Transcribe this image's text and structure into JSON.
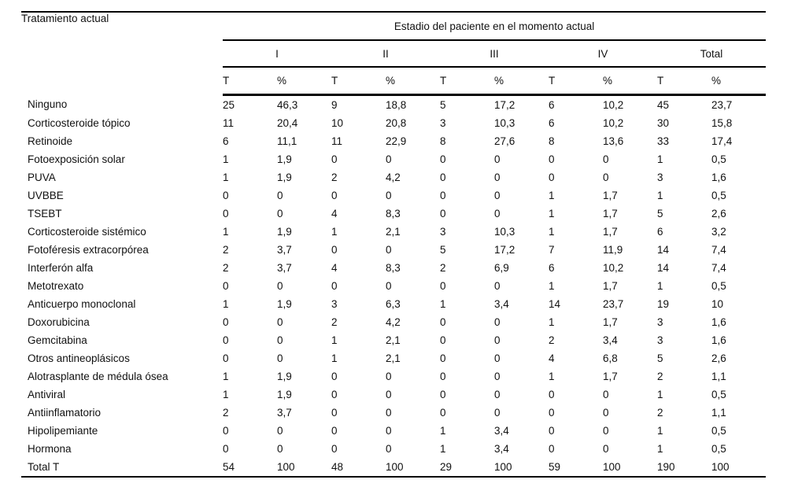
{
  "table": {
    "corner_header": "Tratamiento actual",
    "span_header": "Estadio del paciente en el momento actual",
    "groups": [
      "I",
      "II",
      "III",
      "IV",
      "Total"
    ],
    "subheaders": [
      "T",
      "%"
    ],
    "rows": [
      {
        "label": "Ninguno",
        "values": [
          "25",
          "46,3",
          "9",
          "18,8",
          "5",
          "17,2",
          "6",
          "10,2",
          "45",
          "23,7"
        ]
      },
      {
        "label": "Corticosteroide tópico",
        "values": [
          "11",
          "20,4",
          "10",
          "20,8",
          "3",
          "10,3",
          "6",
          "10,2",
          "30",
          "15,8"
        ]
      },
      {
        "label": "Retinoide",
        "values": [
          "6",
          "11,1",
          "11",
          "22,9",
          "8",
          "27,6",
          "8",
          "13,6",
          "33",
          "17,4"
        ]
      },
      {
        "label": "Fotoexposición solar",
        "values": [
          "1",
          "1,9",
          "0",
          "0",
          "0",
          "0",
          "0",
          "0",
          "1",
          "0,5"
        ]
      },
      {
        "label": "PUVA",
        "values": [
          "1",
          "1,9",
          "2",
          "4,2",
          "0",
          "0",
          "0",
          "0",
          "3",
          "1,6"
        ]
      },
      {
        "label": "UVBBE",
        "values": [
          "0",
          "0",
          "0",
          "0",
          "0",
          "0",
          "1",
          "1,7",
          "1",
          "0,5"
        ]
      },
      {
        "label": "TSEBT",
        "values": [
          "0",
          "0",
          "4",
          "8,3",
          "0",
          "0",
          "1",
          "1,7",
          "5",
          "2,6"
        ]
      },
      {
        "label": "Corticosteroide sistémico",
        "values": [
          "1",
          "1,9",
          "1",
          "2,1",
          "3",
          "10,3",
          "1",
          "1,7",
          "6",
          "3,2"
        ]
      },
      {
        "label": "Fotoféresis extracorpórea",
        "values": [
          "2",
          "3,7",
          "0",
          "0",
          "5",
          "17,2",
          "7",
          "11,9",
          "14",
          "7,4"
        ]
      },
      {
        "label": "Interferón alfa",
        "values": [
          "2",
          "3,7",
          "4",
          "8,3",
          "2",
          "6,9",
          "6",
          "10,2",
          "14",
          "7,4"
        ]
      },
      {
        "label": "Metotrexato",
        "values": [
          "0",
          "0",
          "0",
          "0",
          "0",
          "0",
          "1",
          "1,7",
          "1",
          "0,5"
        ]
      },
      {
        "label": "Anticuerpo monoclonal",
        "values": [
          "1",
          "1,9",
          "3",
          "6,3",
          "1",
          "3,4",
          "14",
          "23,7",
          "19",
          "10"
        ]
      },
      {
        "label": "Doxorubicina",
        "values": [
          "0",
          "0",
          "2",
          "4,2",
          "0",
          "0",
          "1",
          "1,7",
          "3",
          "1,6"
        ]
      },
      {
        "label": "Gemcitabina",
        "values": [
          "0",
          "0",
          "1",
          "2,1",
          "0",
          "0",
          "2",
          "3,4",
          "3",
          "1,6"
        ]
      },
      {
        "label": "Otros antineoplásicos",
        "values": [
          "0",
          "0",
          "1",
          "2,1",
          "0",
          "0",
          "4",
          "6,8",
          "5",
          "2,6"
        ]
      },
      {
        "label": "Alotrasplante de médula ósea",
        "values": [
          "1",
          "1,9",
          "0",
          "0",
          "0",
          "0",
          "1",
          "1,7",
          "2",
          "1,1"
        ]
      },
      {
        "label": "Antiviral",
        "values": [
          "1",
          "1,9",
          "0",
          "0",
          "0",
          "0",
          "0",
          "0",
          "1",
          "0,5"
        ]
      },
      {
        "label": "Antiinflamatorio",
        "values": [
          "2",
          "3,7",
          "0",
          "0",
          "0",
          "0",
          "0",
          "0",
          "2",
          "1,1"
        ]
      },
      {
        "label": "Hipolipemiante",
        "values": [
          "0",
          "0",
          "0",
          "0",
          "1",
          "3,4",
          "0",
          "0",
          "1",
          "0,5"
        ]
      },
      {
        "label": "Hormona",
        "values": [
          "0",
          "0",
          "0",
          "0",
          "1",
          "3,4",
          "0",
          "0",
          "1",
          "0,5"
        ]
      },
      {
        "label": "Total T",
        "values": [
          "54",
          "100",
          "48",
          "100",
          "29",
          "100",
          "59",
          "100",
          "190",
          "100"
        ]
      }
    ]
  }
}
